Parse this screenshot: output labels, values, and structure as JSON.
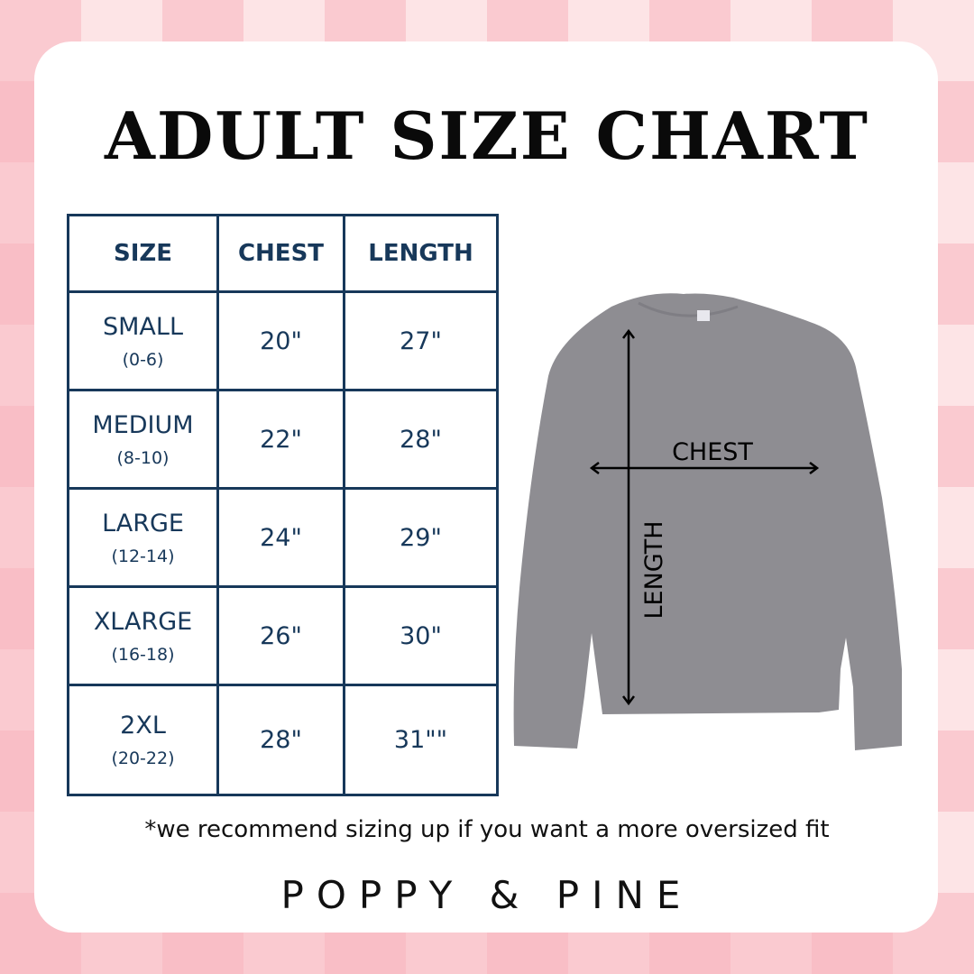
{
  "title": "ADULT SIZE CHART",
  "table": {
    "headers": [
      "SIZE",
      "CHEST",
      "LENGTH"
    ],
    "rows": [
      {
        "size": "SMALL",
        "range": "(0-6)",
        "chest": "20\"",
        "length": "27\""
      },
      {
        "size": "MEDIUM",
        "range": "(8-10)",
        "chest": "22\"",
        "length": "28\""
      },
      {
        "size": "LARGE",
        "range": "(12-14)",
        "chest": "24\"",
        "length": "29\""
      },
      {
        "size": "XLARGE",
        "range": "(16-18)",
        "chest": "26\"",
        "length": "30\""
      },
      {
        "size": "2XL",
        "range": "(20-22)",
        "chest": "28\"",
        "length": "31\"\""
      }
    ]
  },
  "diagram": {
    "chest_label": "CHEST",
    "length_label": "LENGTH",
    "shirt_color": "#8e8d92"
  },
  "note": "*we recommend sizing up if you want a more oversized fit",
  "brand": "POPPY & PINE",
  "colors": {
    "table": "#17385a",
    "background": "#fde4e6"
  }
}
